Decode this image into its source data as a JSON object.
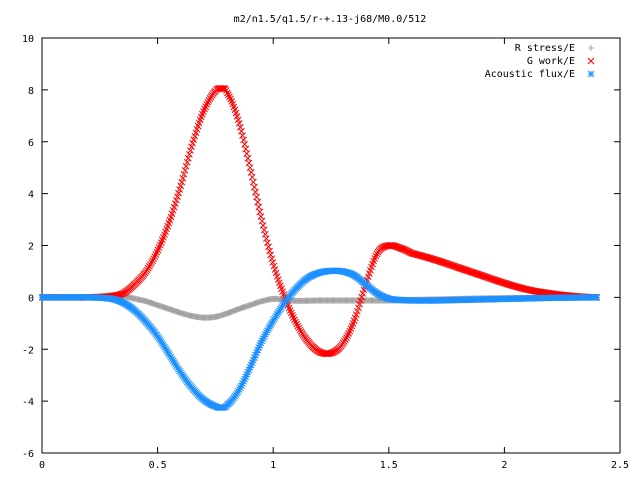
{
  "chart_data": {
    "type": "scatter",
    "title": "m2/n1.5/q1.5/r-+.13-j68/M0.0/512",
    "xlabel": "",
    "ylabel": "",
    "xlim": [
      0,
      2.5
    ],
    "ylim": [
      -6,
      10
    ],
    "xticks": [
      "0",
      "0.5",
      "1",
      "1.5",
      "2",
      "2.5"
    ],
    "yticks": [
      "-6",
      "-4",
      "-2",
      "0",
      "2",
      "4",
      "6",
      "8",
      "10"
    ],
    "grid": false,
    "legend_position": "top-right",
    "series": [
      {
        "name": "R stress/E",
        "marker": "plus",
        "color": "#a0a0a0",
        "x": [
          0.0,
          0.1,
          0.2,
          0.3,
          0.35,
          0.4,
          0.45,
          0.5,
          0.55,
          0.6,
          0.65,
          0.7,
          0.75,
          0.8,
          0.85,
          0.9,
          0.95,
          1.0,
          1.05,
          1.1,
          1.15,
          1.2,
          1.3,
          1.4,
          1.5,
          1.6,
          1.7,
          1.8,
          1.9,
          2.0,
          2.1,
          2.2,
          2.3,
          2.4
        ],
        "y": [
          0.0,
          0.0,
          0.0,
          0.02,
          0.05,
          -0.05,
          -0.15,
          -0.3,
          -0.45,
          -0.6,
          -0.72,
          -0.78,
          -0.75,
          -0.62,
          -0.45,
          -0.3,
          -0.15,
          -0.06,
          -0.1,
          -0.13,
          -0.13,
          -0.12,
          -0.12,
          -0.12,
          -0.12,
          -0.1,
          -0.08,
          -0.06,
          -0.04,
          -0.03,
          -0.02,
          -0.01,
          0.0,
          0.0
        ]
      },
      {
        "name": "G work/E",
        "marker": "cross",
        "color": "#ff0000",
        "x": [
          0.0,
          0.1,
          0.2,
          0.3,
          0.35,
          0.4,
          0.45,
          0.5,
          0.55,
          0.6,
          0.65,
          0.7,
          0.75,
          0.78,
          0.8,
          0.85,
          0.9,
          0.95,
          1.0,
          1.05,
          1.1,
          1.15,
          1.2,
          1.25,
          1.3,
          1.35,
          1.4,
          1.45,
          1.5,
          1.55,
          1.6,
          1.7,
          1.8,
          1.9,
          2.0,
          2.1,
          2.2,
          2.3,
          2.4
        ],
        "y": [
          0.0,
          0.0,
          0.0,
          0.05,
          0.15,
          0.5,
          1.0,
          1.8,
          2.9,
          4.3,
          5.9,
          7.2,
          7.95,
          8.05,
          7.9,
          6.8,
          5.0,
          3.0,
          1.3,
          0.0,
          -1.0,
          -1.7,
          -2.1,
          -2.15,
          -1.8,
          -0.9,
          0.5,
          1.7,
          2.0,
          1.9,
          1.7,
          1.45,
          1.15,
          0.85,
          0.55,
          0.3,
          0.15,
          0.05,
          0.0
        ]
      },
      {
        "name": "Acoustic flux/E",
        "marker": "star",
        "color": "#1e90ff",
        "x": [
          0.0,
          0.1,
          0.2,
          0.3,
          0.35,
          0.4,
          0.45,
          0.5,
          0.55,
          0.6,
          0.65,
          0.7,
          0.75,
          0.78,
          0.8,
          0.85,
          0.9,
          0.95,
          1.0,
          1.05,
          1.1,
          1.15,
          1.2,
          1.25,
          1.3,
          1.35,
          1.4,
          1.45,
          1.5,
          1.55,
          1.6,
          1.7,
          1.8,
          1.9,
          2.0,
          2.1,
          2.2,
          2.3,
          2.4
        ],
        "y": [
          0.0,
          0.0,
          0.0,
          -0.05,
          -0.2,
          -0.5,
          -0.95,
          -1.5,
          -2.2,
          -2.9,
          -3.5,
          -3.95,
          -4.2,
          -4.25,
          -4.15,
          -3.6,
          -2.7,
          -1.7,
          -0.9,
          -0.2,
          0.35,
          0.75,
          0.95,
          1.02,
          1.0,
          0.85,
          0.5,
          0.15,
          -0.05,
          -0.1,
          -0.12,
          -0.12,
          -0.1,
          -0.08,
          -0.06,
          -0.04,
          -0.02,
          -0.01,
          0.0
        ]
      }
    ]
  }
}
